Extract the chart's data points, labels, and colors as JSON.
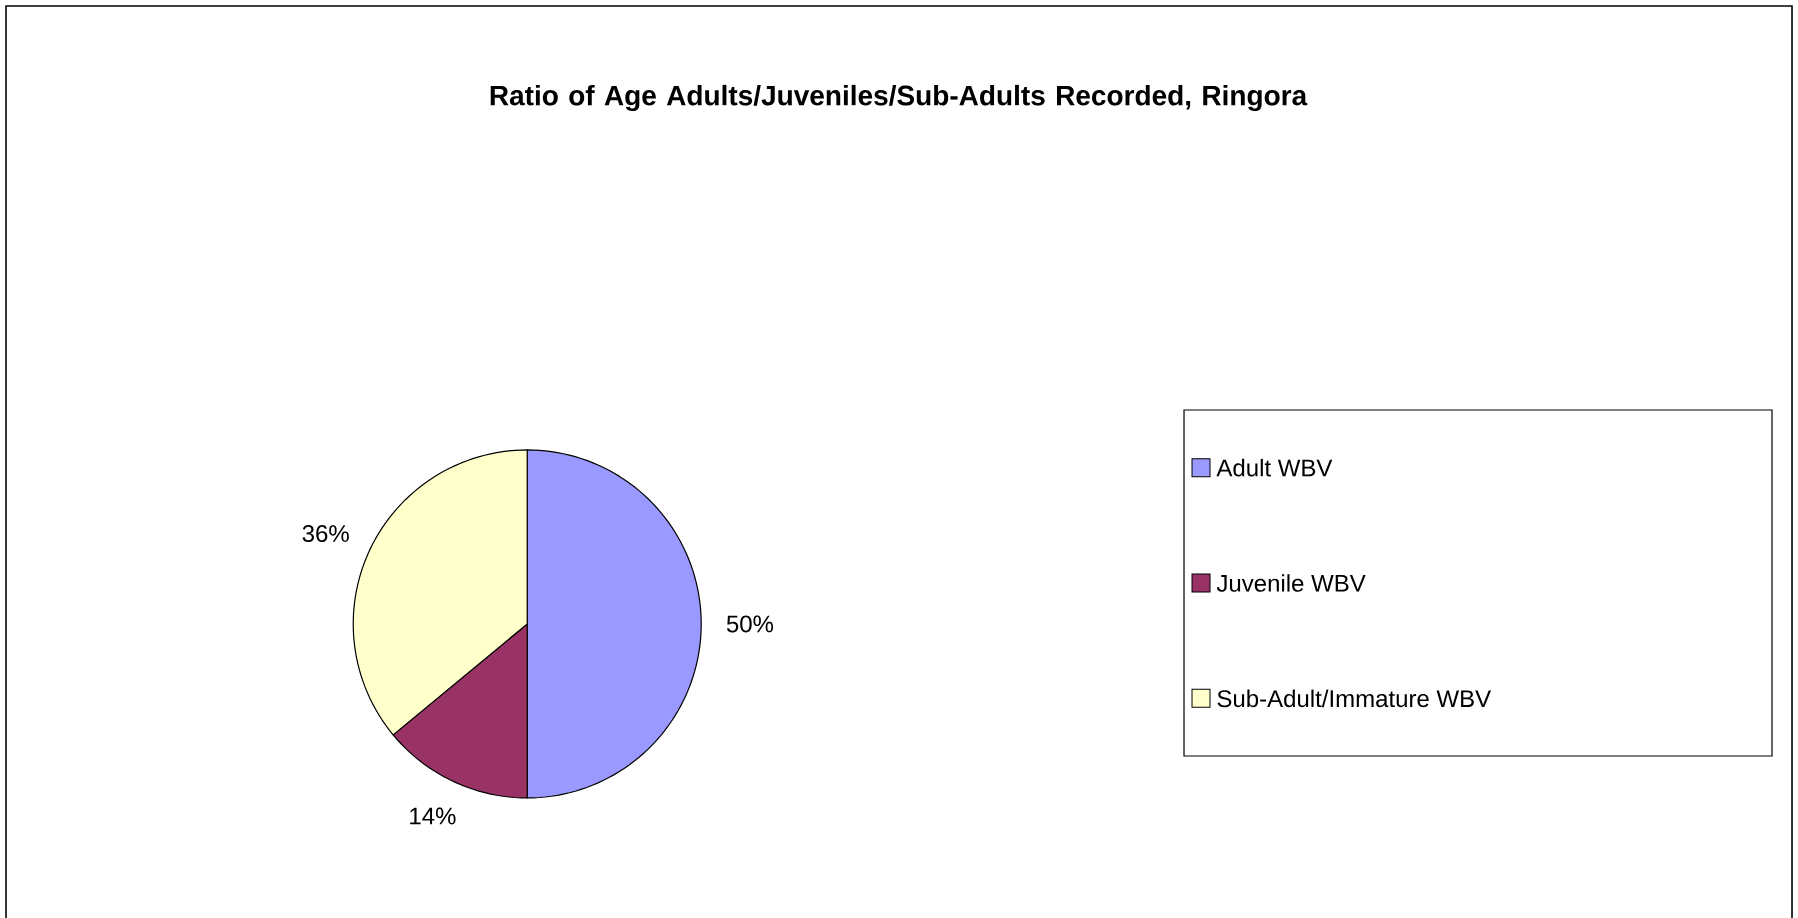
{
  "chart_data": {
    "type": "pie",
    "title": "Ratio of Age Adults/Juveniles/Sub-Adults Recorded, Ringora",
    "categories": [
      "Adult WBV",
      "Juvenile WBV",
      "Sub-Adult/Immature WBV"
    ],
    "values": [
      50,
      14,
      36
    ],
    "colors": [
      "#9999ff",
      "#993366",
      "#ffffcc"
    ],
    "value_labels": [
      "50%",
      "14%",
      "36%"
    ],
    "legend": "right"
  }
}
